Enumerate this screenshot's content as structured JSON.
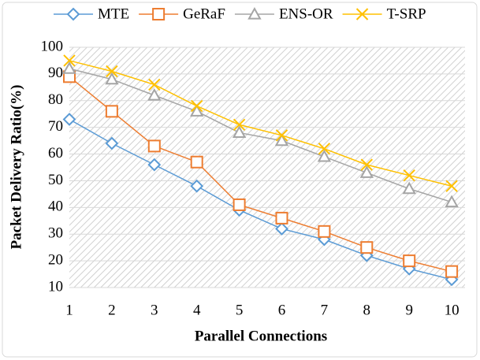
{
  "chart_data": {
    "type": "line",
    "x_label": "Parallel Connections",
    "y_label": "Packet Delivery Ratio(%)",
    "categories": [
      "1",
      "2",
      "3",
      "4",
      "5",
      "6",
      "7",
      "8",
      "9",
      "10"
    ],
    "series": [
      {
        "name": "MTE",
        "color": "#5b9bd5",
        "marker": "diamond",
        "values": [
          73,
          64,
          56,
          48,
          39,
          32,
          28,
          22,
          17,
          13
        ]
      },
      {
        "name": "GeRaF",
        "color": "#ed7d31",
        "marker": "square",
        "values": [
          89,
          76,
          63,
          57,
          41,
          36,
          31,
          25,
          20,
          16
        ]
      },
      {
        "name": "ENS-OR",
        "color": "#a5a5a5",
        "marker": "triangle",
        "values": [
          92,
          88,
          82,
          76,
          68,
          65,
          59,
          53,
          47,
          42
        ]
      },
      {
        "name": "T-SRP",
        "color": "#ffc000",
        "marker": "x",
        "values": [
          95,
          91,
          86,
          78,
          71,
          67,
          62,
          56,
          52,
          48
        ]
      }
    ],
    "ylim": [
      10,
      100
    ],
    "yticks": [
      10,
      20,
      30,
      40,
      50,
      60,
      70,
      80,
      90,
      100
    ],
    "grid": true,
    "legend": "top"
  }
}
